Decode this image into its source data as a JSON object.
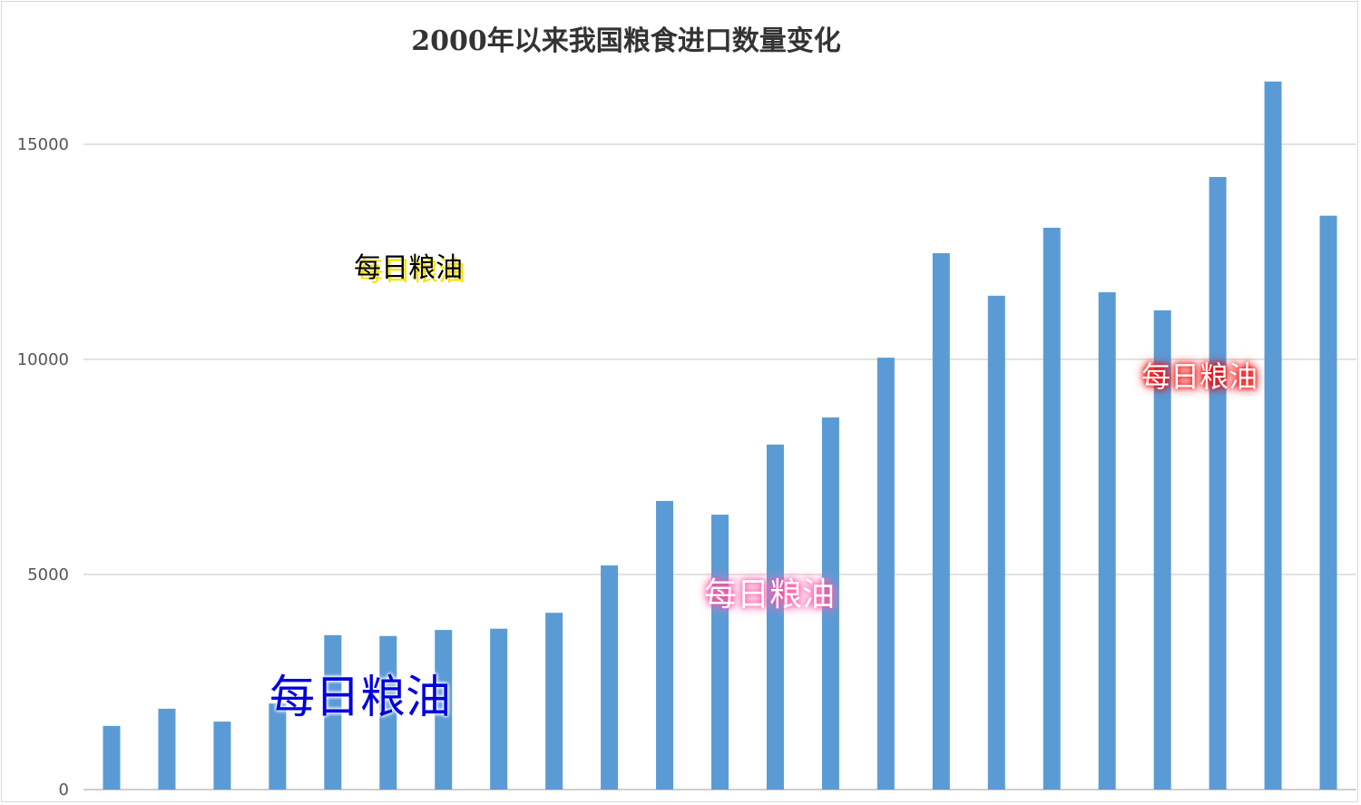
{
  "chart_data": {
    "type": "bar",
    "title": "2000年以来我国粮食进口数量变化",
    "xlabel": "",
    "ylabel": "",
    "ylim": [
      0,
      16500
    ],
    "yticks": [
      "0",
      "5000",
      "10000",
      "15000"
    ],
    "grid": true,
    "legend": "none",
    "bar_color": "#5b9bd5",
    "values": [
      1480,
      1880,
      1580,
      2000,
      3590,
      3570,
      3710,
      3740,
      4110,
      5210,
      6710,
      6390,
      8020,
      8650,
      10040,
      12470,
      11480,
      13060,
      11560,
      11140,
      14240,
      16460,
      13340
    ]
  },
  "watermarks": [
    "每日粮油",
    "每日粮油",
    "每日粮油",
    "每日粮油"
  ]
}
